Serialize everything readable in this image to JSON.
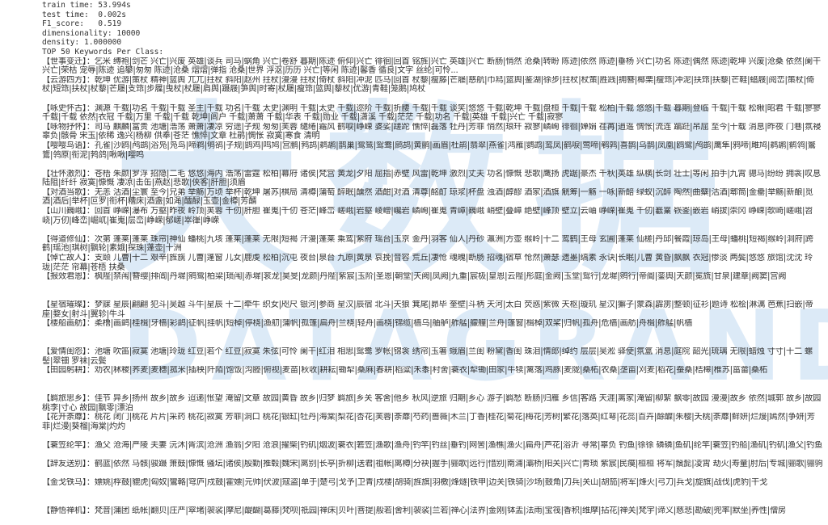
{
  "stats": {
    "train_time": "train time: 53.994s",
    "test_time": "test time:  0.002s",
    "f1_score": "F1_score:   0.519",
    "dimensionality": "dimensionality: 10000",
    "density": "density: 1.000000",
    "top_heading": "TOP 50 Keywords Per Class:"
  },
  "watermark": {
    "glyphs": "大数据",
    "brand": "DATAGRAND"
  },
  "classes": [
    {
      "label": "【世事变迁】：",
      "keywords": "乞米 缚袍|剑芒 兴亡|兴废 英雄|谈兵 司马|蜗角 兴亡|卷舒 暮期|陈迹 俯仰|兴亡 徘徊|回首 铭旌|兴亡 英雄|兴亡 断肠|悄然 沧桑|转盼 陈迹|依然 陈迹|垂杨 兴亡|功名 陈迹|偶然 陈迹|乾坤 兴废|沧桑 依然|阑干 兴亡|荣枯 宠辱|陈迹 追攀|匆匆 陈迹|沧桑 熠熠|弹指 沧桑|世界 浮沤|历历 兴亡|等闲 陈迹|馨香 循良|文字 丝纶|可怜..."
    },
    {
      "label": "【云游四方】：",
      "keywords": "乾坤 优游|策杖 精神|篮舆 兀兀|拄杖 斜阳|赵州 拄杖|漫漫 拄杖|倚杖 斜阳|冲泥 匹马|回首 杖藜|瘦藤|芒屦|慈航|巾舄|篮舆|鉴湖|徐步|拄杖|杖策|胜践|拥簪|椰栗|瘦筇|冲泥|扶筇|扶藜|芒鞋|蜡屐|阅峦|策杖|倚杖|短筇|扶杖|杖藜|芒屦|支筇|步屧|曳杖|杖屦|肩舆|蹑屐|笋舆|时寄|杖屦|瘦筇|篮舆|藜杖|优游|青鞋|笼鹅|鸠杖"
    },
    {
      "label": "【咏史怀古】：",
      "keywords": "渊源 千载|功名 千载|千载 圣主|千载 功名|千载 太史|渊明 千载|太史 千载|迩阶 千载|折腰 千载|千载 谈笑|悠悠 千载|乾坤 千载|盘桓 千载|千载 松柏|千载 悠悠|千载 暮期|登临 千载|千载 松楸|昭君 千载|寥寥 千载|千载 依然|衣冠 千载|万里 千载|千载 乾坤|闾户 千载|萧萧 千载|华表 千载|勋业 千载|潇溪 千载|茫茫 千载|功名 千载|英雄 千载|兴亡 千载|寂寥"
    },
    {
      "label": "【咏物抒怀】：",
      "keywords": "司马 麒麟|富贵 池塘|浩荡 萧萧|凄凉 穷途|子规 匆匆|芙蓉 缱绻|霜风 鹤唳|峥嵘 婆娑|蹉跎 憔悴|磊落 牡丹|芳菲 悄然|琅玕 寂寥|嶙峋 徘徊|婵娟 荏苒|逍遥 惆怅|流连 蹁跹|吊屈 至今|十载 消息|昨夜 门巷|氛祲 辜负|骸骨 宋玉|依稀 逸兴|杨柳 供奉|苍茫 憔悴|文章 杜鹃|惆怅 寂寞|寒食 清明"
    },
    {
      "label": "【嘤嘤鸟语】：",
      "keywords": "孔雀|沙鸥|鸬鹚|浴凫|凫鸟|啼鹈|鸲鹆|子规|鹍鸡|鸣鸠|宫鹏|鹁鸪|鹈鹕|鹊巢|鹭鸶|鸳鸯|鹧鸪|黄鹂|画眉|杜鹃|翡翠|燕雀|鸿雁|鹦鹉|鸾凤|鹤唳|莺啼|鹌鹑|喜鹊|乌鹊|凤凰|鸥鹭|鸬鹚|鹰隼|鸦啼|雎鸠|鹈鹕|鹡鸰|鸑鷟|鸰原|衔泥|鹁鸽|啾啾|嘤鸣"
    },
    {
      "label": "【壮怀激烈】：",
      "keywords": "苍梧 朱颜|罗浮 招隐|二毛 悠悠|海内 浩荡|雷霆 松柏|幕府 诸侯|梵宫 黄龙|夕阳 屈指|赤壁 风雷|乾坤 激烈|丈夫 功名|慷慨 悲歌|鹰扬 虎踞|豪杰 千秋|英雄 纵横|长剑 壮士|等闲 拍手|九霄 骢马|纷纷 拥衾|叹息 陆阻|纤纤 寂寞|慷慨 凄凉|击缶|燕赵|悲歌|侠客|肝胆|须眉"
    },
    {
      "label": "【对酒当歌】：",
      "keywords": "无恙 沽酒|尘寰 至今|兄弟 举觞|万顷 举杯|乾坤 屠苏|棋局 清樽|蒲萄 醉眠|醺然 酒酣|对酒 清尊|酩酊 琼浆|杯盘 浊酒|醇醪 酒家|酒旗 觥筹|一觞 一咏|新醅 绿蚁|沉醉 陶然|曲糵|沽酒|郫筒|金罍|举觞|新酿|觅酒|酒后|举杯|叵罗|衔杯|糟床|酒盏|如渑|醽醁|玉壶|金樽|芳醑"
    },
    {
      "label": "【山川巍峨】：",
      "keywords": "回首 峥嵘|瀑布 万壑|昨夜 岭顶|芙蓉 千仞|肝胆 崔嵬|千仞 苍茫|峰峦 嵯峨|岩壑 崚嶒|巉岩 嶙峋|崔嵬 青嶂|巍峨 峭壁|叠嶂 绝壁|峰顶 壁立|云岫 峥嵘|崔嵬 千仞|嶻嶪 嵚崟|嵌岩 峭拔|崇冈 峥嵘|欹崎|嵯峨|岧峣|万仞|峰峦|崛屼|崔嵬|层峦|峥嵘|郁嵯|崒嵂|峥嵘"
    },
    {
      "label": "【得道修仙】：",
      "keywords": "次第 蓬莱|蓬莱 珠帘|神仙 蟠桃|九垓 蓬莱|蓬莱 无限|短褐 汗漫|蓬莱 乘鸾|紫府 瑶台|玉京 金丹|羽客 仙人|丹砂 瀛洲|方壶 缑岭|十二 鸾鹤|王母 玄圃|蓬莱 仙槎|丹邱|餐霞|琼岛|王母|蟠桃|短褐|缑岭|洞府|跨鹤|瑶池|琪树|飘轮|素娥|探珠|蓬壶|十洲"
    },
    {
      "label": "【悼亡故人】：",
      "keywords": "支颐 儿曹|十二 艰辛|旌旐 儿曹|蓬窗 儿女|鹿虔 松柏|沉屯 夜台|泉台 九原|黄泉 哀挽|音容 荒丘|凄怆 魂魄|断肠 招魂|宿草 怆然|萧瑟 遗墨|缟素 永诀|长眠|儿曹 黄昏|飘飘 衣冠|惨淡 两鬓|悠悠 旅馆|沈沈 玲珑|茫茫 帘幕|苍梧 扶桑"
    },
    {
      "label": "【报效君恩】：",
      "keywords": "枫陛|禁闱|簪缨|排阊|丹墀|鹓鹭|柏梁|琐闱|赤墀|衮龙|昊旻|龙颜|丹陛|紫宸|玉阶|圣恩|朝堂|天阙|凤阙|九重|宸极|皇恩|云陛|彤庭|金阙|玉堂|鸳行|龙墀|鹓行|帝阍|銮舆|天颜|冕旒|甘泉|建章|阙窦|宫阙"
    },
    {
      "label": "【星宿璀璨】：",
      "keywords": "梦寐 星辰|翩翩 犯斗|吴越 斗牛|星辰 十二|牵牛 织女|咫尺 银河|参商 星汉|辰宿 北斗|天狼 箕尾|昴毕 奎壁|斗柄 天河|太白 荧惑|紫微 天枢|璇玑 星汉|獬子|蒙森|霹雳|整顿|征衫|题诗 松桧|淋漓 芭蕉|扫嵌|帝座|婺女|射斗|翼轸|牛斗"
    },
    {
      "label": "【楼船画舫】：",
      "keywords": "柔橹|画鹢|桂楫|牙樯|彩鹢|征帆|挂帆|短棹|停桡|渔舠|蒲帆|孤篷|扁舟|兰桡|轻舟|画桡|锦缆|樯乌|舳舻|舴艋|艨艟|兰舟|篷窗|楫棹|双桨|归帆|孤舟|危樯|画舫|舟楫|舴艋|帆樯"
    },
    {
      "label": "【爱情闺怨】：",
      "keywords": "池塘 吹笛|寂寞 池塘|玲珑 红豆|若个 红豆|寂寞 朱弦|可怜 阑干|红泪 相思|鸳鸯 罗帐|锦衾 绣帘|玉箸 蛾眉|兰闺 粉黛|香闺 珠泪|情郎|绰约 层层|吴淞 驿使|氛氲 消息|庭院 韶光|琉璃 无限|蜡烛 寸寸|十二 螺髻|翠钿 罗袜|云鬓"
    },
    {
      "label": "【田园躬耕】：",
      "keywords": "劝农|秫稷|荞麦|麦穗|菰米|插秧|阡陌|饱饭|沟塍|俯视|麦苗|秋收|耕耘|锄犁|桑麻|春耕|稻粱|禾黍|村舍|蓑衣|犁锄|田家|牛犊|篱落|鸡豚|麦陇|桑柘|农桑|垄亩|刈麦|稻花|蚕桑|桔槔|椎苏|菑畲|桑柘"
    },
    {
      "label": "【羁旅思乡】：",
      "keywords": "佳节 异乡|扬州 故乡|故乡 迢递|怅望 淹留|文章 故园|黄昏 故乡|归梦 羁旅|乡关 客舍|他乡 秋风|逆旅 归期|乡心 游子|羁愁 断肠|归雁 乡信|客路 天涯|离家|淹留|柳絮 飘零|故园 漫漫|故乡 依然|城郭 故乡|故园 桃李|寸心 故园|飘零|漂泊"
    },
    {
      "label": "【花开荼蘼】：",
      "keywords": "桃花 闭门|桃花 片片|采药 桃花|寂寞 芳菲|洞口 桃花|银缸|牡丹|海棠|梨花|杏花|芙蓉|荼蘼|芍药|蔷薇|木兰|丁香|桂花|菊花|梅花|芳树|繁花|落英|红萼|花蕊|百卉|酴醾|朱樱|夭桃|荼蘼|鲜妍|烂熳|嫣然|争妍|芳菲|烂漫|葵榴|海棠|灼灼"
    },
    {
      "label": "【蓑笠纶竿】：",
      "keywords": "渔父 沧海|严陵 夫妻 沅沐|胥滨|沧洲 渔翁|夕阳 沧浪|擢柴|钓矶|烟波|蓑衣|箬笠|渔歌|渔舟|钓竿|钓丝|垂钓|网罟|渔樵|渔火|扁舟|芦花|浴沂 寻常|辜负 钓鱼|徐徐 磷磷|鱼矶|纶竿|蓑笠|钓船|渔矶|钓矶|渔父|钓鱼"
    },
    {
      "label": "【辞友送别】：",
      "keywords": "鹤蓝|依然 马骸|骏蹑 箫鼓|慷慨 骚坛|诸侯|殷勤|推毂|魏宋|离别|长亭|折柳|送君|祖帐|离樽|分袂|握手|骊歌|远行|惜别|南浦|灞桥|阳关|兴亡|青琐 紫宸|民瘼|桓桓 将军|鬚髭|凌霄 劫火|寿童|肘后|专城|骊歌|骊驹"
    },
    {
      "label": "【金戈铁马】：",
      "keywords": "嫖姚|桴鼓|貔虎|匈奴|鸞輅|穹庐|戍鼓|霍嫖|元帅|伏波|寇盗|单于|楚弓|戈予|卫青|戍楼|胡骑|旌旗|羽檄|烽燧|铁甲|边关|铁骑|沙场|鼓角|刀兵|关山|胡笳|将军|烽火|弓刀|兵戈|旋旗|战伐|虎豹|干戈"
    },
    {
      "label": "【静悟禅机】：",
      "keywords": "梵音|蒲团 纸帐|翻贝|庄严|窣堵|袈裟|摩尼|醍醐|葛藤|梵呗|祇园|禅床|贝叶|菩提|般若|舍利|袈裟|兰若|禅心|法界|金刚|钵盂|法雨|宝筏|香积|维摩|拈花|禅关|梵宇|谛义|慈悲|勘破|兜率|默坐|养性|僧房"
    }
  ]
}
